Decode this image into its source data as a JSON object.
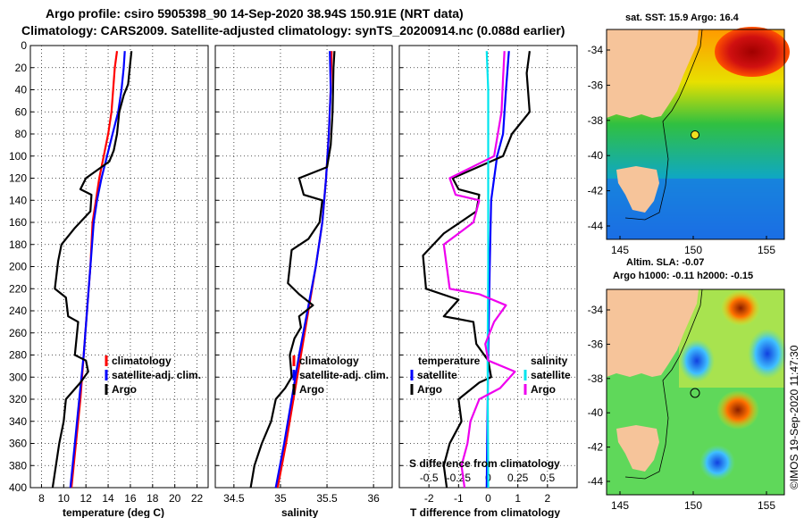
{
  "header": {
    "title_line1": "Argo profile: csiro 5905398_90 14-Sep-2020 38.94S 150.91E (NRT data)",
    "title_line2": "Climatology: CARS2009. Satellite-adjusted climatology: synTS_20200914.nc (0.088d earlier)"
  },
  "colors": {
    "climatology": "#ff0000",
    "satellite": "#0000ff",
    "argo": "#000000",
    "sat_salinity": "#00e5ee",
    "argo_salinity": "#ee00ee"
  },
  "chart_data": [
    {
      "type": "line",
      "name": "temperature-panel",
      "xlabel": "temperature (deg C)",
      "ylabel": "",
      "xlim": [
        7,
        23
      ],
      "ylim": [
        400,
        0
      ],
      "xticks": [
        8,
        10,
        12,
        14,
        16,
        18,
        20,
        22
      ],
      "yticks": [
        0,
        20,
        40,
        60,
        80,
        100,
        120,
        140,
        160,
        180,
        200,
        220,
        240,
        260,
        280,
        300,
        320,
        340,
        360,
        380,
        400
      ],
      "grid": true,
      "legend": [
        "climatology",
        "satellite-adj. clim.",
        "Argo"
      ],
      "series": [
        {
          "name": "climatology",
          "color": "#ff0000",
          "points": [
            [
              14.8,
              5
            ],
            [
              14.6,
              20
            ],
            [
              14.3,
              60
            ],
            [
              14.0,
              80
            ],
            [
              13.6,
              100
            ],
            [
              13.2,
              120
            ],
            [
              12.9,
              140
            ],
            [
              12.6,
              160
            ],
            [
              12.4,
              200
            ],
            [
              12.1,
              240
            ],
            [
              11.8,
              280
            ],
            [
              11.5,
              320
            ],
            [
              11.1,
              360
            ],
            [
              10.7,
              400
            ]
          ]
        },
        {
          "name": "satellite-adj. clim.",
          "color": "#0000ff",
          "points": [
            [
              15.5,
              5
            ],
            [
              15.4,
              20
            ],
            [
              15.2,
              40
            ],
            [
              14.9,
              60
            ],
            [
              14.4,
              80
            ],
            [
              13.9,
              100
            ],
            [
              13.4,
              120
            ],
            [
              13.0,
              140
            ],
            [
              12.7,
              160
            ],
            [
              12.4,
              200
            ],
            [
              12.1,
              240
            ],
            [
              11.8,
              280
            ],
            [
              11.4,
              320
            ],
            [
              11.0,
              360
            ],
            [
              10.6,
              400
            ]
          ]
        },
        {
          "name": "Argo",
          "color": "#000000",
          "points": [
            [
              16.1,
              5
            ],
            [
              16.0,
              15
            ],
            [
              15.8,
              35
            ],
            [
              15.4,
              45
            ],
            [
              15.0,
              60
            ],
            [
              14.8,
              80
            ],
            [
              14.5,
              95
            ],
            [
              14.1,
              105
            ],
            [
              12.0,
              120
            ],
            [
              11.5,
              130
            ],
            [
              12.5,
              135
            ],
            [
              12.4,
              150
            ],
            [
              11.0,
              165
            ],
            [
              9.8,
              180
            ],
            [
              9.5,
              195
            ],
            [
              9.2,
              220
            ],
            [
              10.2,
              228
            ],
            [
              10.4,
              245
            ],
            [
              11.3,
              250
            ],
            [
              11.0,
              280
            ],
            [
              12.0,
              285
            ],
            [
              12.2,
              295
            ],
            [
              11.5,
              305
            ],
            [
              10.2,
              320
            ],
            [
              10.0,
              340
            ],
            [
              9.6,
              360
            ],
            [
              9.3,
              380
            ],
            [
              9.0,
              400
            ]
          ]
        }
      ]
    },
    {
      "type": "line",
      "name": "salinity-panel",
      "xlabel": "salinity",
      "xlim": [
        34.3,
        36.2
      ],
      "ylim": [
        400,
        0
      ],
      "xticks": [
        34.5,
        35,
        35.5,
        36
      ],
      "xtick_labels": [
        "34.5",
        "35",
        "35.5",
        "36"
      ],
      "grid": true,
      "legend": [
        "climatology",
        "satellite-adj. clim.",
        "Argo"
      ],
      "series": [
        {
          "name": "climatology",
          "color": "#ff0000",
          "points": [
            [
              35.55,
              5
            ],
            [
              35.54,
              40
            ],
            [
              35.52,
              80
            ],
            [
              35.49,
              120
            ],
            [
              35.45,
              160
            ],
            [
              35.38,
              200
            ],
            [
              35.3,
              240
            ],
            [
              35.22,
              280
            ],
            [
              35.14,
              320
            ],
            [
              35.06,
              360
            ],
            [
              34.97,
              400
            ]
          ]
        },
        {
          "name": "satellite-adj. clim.",
          "color": "#0000ff",
          "points": [
            [
              35.53,
              5
            ],
            [
              35.54,
              40
            ],
            [
              35.52,
              80
            ],
            [
              35.49,
              120
            ],
            [
              35.45,
              160
            ],
            [
              35.38,
              200
            ],
            [
              35.29,
              240
            ],
            [
              35.2,
              280
            ],
            [
              35.12,
              320
            ],
            [
              35.04,
              360
            ],
            [
              34.95,
              400
            ]
          ]
        },
        {
          "name": "Argo",
          "color": "#000000",
          "points": [
            [
              35.58,
              5
            ],
            [
              35.57,
              20
            ],
            [
              35.56,
              60
            ],
            [
              35.54,
              90
            ],
            [
              35.5,
              110
            ],
            [
              35.2,
              120
            ],
            [
              35.25,
              135
            ],
            [
              35.45,
              140
            ],
            [
              35.42,
              160
            ],
            [
              35.3,
              175
            ],
            [
              35.12,
              185
            ],
            [
              35.1,
              200
            ],
            [
              35.08,
              215
            ],
            [
              35.2,
              225
            ],
            [
              35.35,
              235
            ],
            [
              35.2,
              245
            ],
            [
              35.22,
              255
            ],
            [
              35.15,
              265
            ],
            [
              35.1,
              280
            ],
            [
              35.12,
              300
            ],
            [
              35.05,
              310
            ],
            [
              34.95,
              320
            ],
            [
              34.9,
              340
            ],
            [
              34.8,
              360
            ],
            [
              34.72,
              380
            ],
            [
              34.68,
              400
            ]
          ]
        }
      ]
    },
    {
      "type": "line",
      "name": "difference-panel",
      "xlabel": "T difference from climatology",
      "xlabel_top": "S difference from climatology",
      "xlim": [
        -3,
        3
      ],
      "ylim": [
        400,
        0
      ],
      "xticks": [
        -2,
        -1,
        0,
        1,
        2
      ],
      "xtick_labels": [
        "-2",
        "-1",
        "0",
        "1",
        "2"
      ],
      "top_ticks": [
        -2,
        -1,
        0,
        1,
        2
      ],
      "top_tick_labels": [
        "-0.5",
        "-0.25",
        "0",
        "0.25",
        "0.5"
      ],
      "grid": true,
      "legend_temperature": {
        "title": "temperature",
        "items": [
          "satellite",
          "Argo"
        ]
      },
      "legend_salinity": {
        "title": "salinity",
        "items": [
          "satellite",
          "Argo"
        ]
      },
      "series": [
        {
          "name": "T satellite",
          "color": "#0000ff",
          "points": [
            [
              0.7,
              5
            ],
            [
              0.6,
              40
            ],
            [
              0.5,
              80
            ],
            [
              0.3,
              100
            ],
            [
              0.1,
              140
            ],
            [
              0.05,
              200
            ],
            [
              0.0,
              280
            ],
            [
              -0.05,
              400
            ]
          ]
        },
        {
          "name": "T Argo",
          "color": "#000000",
          "points": [
            [
              1.4,
              5
            ],
            [
              1.3,
              25
            ],
            [
              1.4,
              60
            ],
            [
              0.8,
              80
            ],
            [
              0.5,
              100
            ],
            [
              -1.2,
              120
            ],
            [
              -1.0,
              130
            ],
            [
              -0.3,
              135
            ],
            [
              -0.4,
              150
            ],
            [
              -1.5,
              170
            ],
            [
              -2.2,
              190
            ],
            [
              -2.1,
              220
            ],
            [
              -1.0,
              230
            ],
            [
              -1.5,
              245
            ],
            [
              -0.5,
              250
            ],
            [
              -0.4,
              270
            ],
            [
              0.0,
              285
            ],
            [
              0.1,
              300
            ],
            [
              -0.3,
              305
            ],
            [
              -1.0,
              320
            ],
            [
              -0.9,
              340
            ],
            [
              -1.3,
              360
            ],
            [
              -1.5,
              380
            ],
            [
              -1.4,
              400
            ]
          ]
        },
        {
          "name": "S satellite",
          "color": "#00e5ee",
          "points": [
            [
              -0.05,
              5
            ],
            [
              0.0,
              40
            ],
            [
              0.0,
              120
            ],
            [
              0.0,
              200
            ],
            [
              -0.02,
              280
            ],
            [
              0.0,
              400
            ]
          ]
        },
        {
          "name": "S Argo",
          "color": "#ee00ee",
          "points": [
            [
              0.55,
              5
            ],
            [
              0.5,
              30
            ],
            [
              0.45,
              60
            ],
            [
              0.2,
              100
            ],
            [
              -1.3,
              120
            ],
            [
              -1.1,
              135
            ],
            [
              -0.3,
              140
            ],
            [
              -0.5,
              160
            ],
            [
              -1.5,
              180
            ],
            [
              -1.4,
              200
            ],
            [
              -1.3,
              220
            ],
            [
              -0.3,
              225
            ],
            [
              0.6,
              235
            ],
            [
              0.2,
              250
            ],
            [
              -0.1,
              270
            ],
            [
              0.0,
              285
            ],
            [
              0.9,
              295
            ],
            [
              0.4,
              310
            ],
            [
              -0.3,
              320
            ],
            [
              -0.6,
              340
            ],
            [
              -0.7,
              360
            ],
            [
              -0.9,
              380
            ],
            [
              -0.8,
              400
            ]
          ]
        }
      ]
    }
  ],
  "maps": {
    "sst": {
      "title": "sat. SST: 15.9 Argo: 16.4",
      "lat_ticks": [
        "-34",
        "-36",
        "-38",
        "-40",
        "-42",
        "-44"
      ],
      "lon_ticks": [
        "145",
        "150",
        "155"
      ]
    },
    "sla": {
      "title_line1": "Altim. SLA: -0.07",
      "title_line2": "Argo h1000: -0.11 h2000: -0.15",
      "lat_ticks": [
        "-34",
        "-36",
        "-38",
        "-40",
        "-42",
        "-44"
      ],
      "lon_ticks": [
        "145",
        "150",
        "155"
      ]
    }
  },
  "watermark": "©IMOS 19-Sep-2020 11:47:30"
}
